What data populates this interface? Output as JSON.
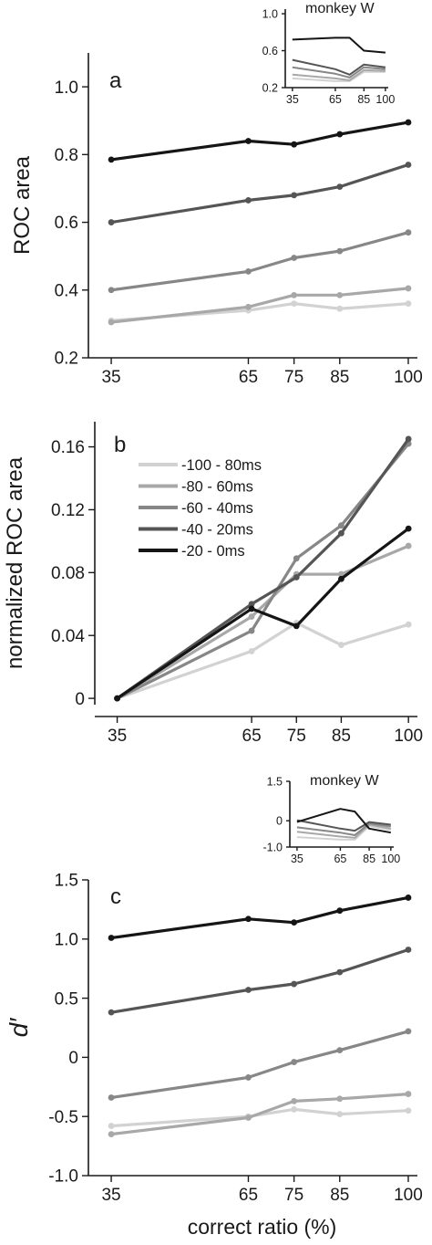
{
  "chart_data": [
    {
      "id": "a",
      "type": "line",
      "panel_label": "a",
      "ylabel": "ROC area",
      "xlabel": "",
      "x": [
        35,
        65,
        75,
        85,
        100
      ],
      "x_tick_labels": [
        "35",
        "65",
        "75",
        "85",
        "100"
      ],
      "y_ticks": [
        0.2,
        0.4,
        0.6,
        0.8,
        1.0
      ],
      "y_tick_labels": [
        "0.2",
        "0.4",
        "0.6",
        "0.8",
        "1.0"
      ],
      "xlim": [
        30,
        102
      ],
      "ylim": [
        0.2,
        1.1
      ],
      "markers": true,
      "series": [
        {
          "color": "#d2d2d2",
          "values": [
            0.31,
            0.34,
            0.36,
            0.345,
            0.36
          ]
        },
        {
          "color": "#a8a8a8",
          "values": [
            0.305,
            0.35,
            0.385,
            0.385,
            0.405
          ]
        },
        {
          "color": "#878787",
          "values": [
            0.4,
            0.455,
            0.495,
            0.515,
            0.57
          ]
        },
        {
          "color": "#555555",
          "values": [
            0.6,
            0.665,
            0.68,
            0.705,
            0.77
          ]
        },
        {
          "color": "#151515",
          "values": [
            0.785,
            0.84,
            0.83,
            0.86,
            0.895
          ]
        }
      ]
    },
    {
      "id": "a-inset",
      "type": "line",
      "title": "monkey W",
      "x": [
        35,
        65,
        75,
        85,
        100
      ],
      "x_tick_labels": [
        "35",
        "65",
        "85",
        "100"
      ],
      "x_tick_values": [
        35,
        65,
        85,
        100
      ],
      "y_ticks": [
        0.2,
        0.6,
        1.0
      ],
      "y_tick_labels": [
        "0.2",
        "0.6",
        "1.0"
      ],
      "xlim": [
        30,
        102
      ],
      "ylim": [
        0.2,
        1.05
      ],
      "markers": false,
      "series": [
        {
          "color": "#d2d2d2",
          "values": [
            0.3,
            0.27,
            0.27,
            0.37,
            0.37
          ]
        },
        {
          "color": "#a8a8a8",
          "values": [
            0.34,
            0.3,
            0.28,
            0.39,
            0.38
          ]
        },
        {
          "color": "#878787",
          "values": [
            0.42,
            0.35,
            0.31,
            0.42,
            0.4
          ]
        },
        {
          "color": "#555555",
          "values": [
            0.5,
            0.4,
            0.34,
            0.45,
            0.42
          ]
        },
        {
          "color": "#151515",
          "values": [
            0.72,
            0.74,
            0.74,
            0.6,
            0.58
          ]
        }
      ]
    },
    {
      "id": "b",
      "type": "line",
      "panel_label": "b",
      "ylabel": "normalized ROC area",
      "xlabel": "",
      "x": [
        35,
        65,
        75,
        85,
        100
      ],
      "x_tick_labels": [
        "35",
        "65",
        "75",
        "85",
        "100"
      ],
      "y_ticks": [
        0,
        0.04,
        0.08,
        0.12,
        0.16
      ],
      "y_tick_labels": [
        "0",
        "0.04",
        "0.08",
        "0.12",
        "0.16"
      ],
      "xlim": [
        30,
        102
      ],
      "ylim": [
        -0.004,
        0.176
      ],
      "markers": true,
      "legend": "top-left",
      "series": [
        {
          "name": "-100 - 80ms",
          "color": "#d2d2d2",
          "values": [
            0,
            0.03,
            0.048,
            0.034,
            0.047
          ]
        },
        {
          "name": "-80 - 60ms",
          "color": "#a8a8a8",
          "values": [
            0,
            0.052,
            0.079,
            0.079,
            0.097
          ]
        },
        {
          "name": "-60 - 40ms",
          "color": "#878787",
          "values": [
            0,
            0.043,
            0.089,
            0.11,
            0.162
          ]
        },
        {
          "name": "-40 - 20ms",
          "color": "#555555",
          "values": [
            0,
            0.06,
            0.077,
            0.105,
            0.165
          ]
        },
        {
          "name": "-20 - 0ms",
          "color": "#151515",
          "values": [
            0,
            0.057,
            0.046,
            0.076,
            0.108
          ]
        }
      ]
    },
    {
      "id": "c",
      "type": "line",
      "panel_label": "c",
      "ylabel": "d′",
      "xlabel": "correct ratio (%)",
      "x": [
        35,
        65,
        75,
        85,
        100
      ],
      "x_tick_labels": [
        "35",
        "65",
        "75",
        "85",
        "100"
      ],
      "y_ticks": [
        -1.0,
        -0.5,
        0,
        0.5,
        1.0,
        1.5
      ],
      "y_tick_labels": [
        "-1.0",
        "-0.5",
        "0",
        "0.5",
        "1.0",
        "1.5"
      ],
      "xlim": [
        30,
        102
      ],
      "ylim": [
        -1.0,
        1.5
      ],
      "markers": true,
      "series": [
        {
          "color": "#d2d2d2",
          "values": [
            -0.58,
            -0.5,
            -0.44,
            -0.48,
            -0.45
          ]
        },
        {
          "color": "#a8a8a8",
          "values": [
            -0.65,
            -0.51,
            -0.37,
            -0.35,
            -0.31
          ]
        },
        {
          "color": "#878787",
          "values": [
            -0.34,
            -0.17,
            -0.04,
            0.06,
            0.22
          ]
        },
        {
          "color": "#555555",
          "values": [
            0.38,
            0.57,
            0.62,
            0.72,
            0.91
          ]
        },
        {
          "color": "#151515",
          "values": [
            1.01,
            1.17,
            1.14,
            1.24,
            1.35
          ]
        }
      ]
    },
    {
      "id": "c-inset",
      "type": "line",
      "title": "monkey W",
      "x": [
        35,
        65,
        75,
        85,
        100
      ],
      "x_tick_labels": [
        "35",
        "65",
        "85",
        "100"
      ],
      "x_tick_values": [
        35,
        65,
        85,
        100
      ],
      "y_ticks": [
        -1.0,
        0,
        1.5
      ],
      "y_tick_labels": [
        "-1.0",
        "0",
        "1.5"
      ],
      "xlim": [
        30,
        102
      ],
      "ylim": [
        -1.0,
        1.5
      ],
      "markers": false,
      "series": [
        {
          "color": "#d2d2d2",
          "values": [
            -0.62,
            -0.72,
            -0.72,
            -0.2,
            -0.35
          ]
        },
        {
          "color": "#a8a8a8",
          "values": [
            -0.42,
            -0.6,
            -0.65,
            -0.15,
            -0.3
          ]
        },
        {
          "color": "#878787",
          "values": [
            -0.25,
            -0.45,
            -0.55,
            -0.1,
            -0.22
          ]
        },
        {
          "color": "#555555",
          "values": [
            0.02,
            -0.3,
            -0.38,
            -0.05,
            -0.15
          ]
        },
        {
          "color": "#151515",
          "values": [
            -0.05,
            0.45,
            0.35,
            -0.3,
            -0.45
          ]
        }
      ]
    }
  ]
}
